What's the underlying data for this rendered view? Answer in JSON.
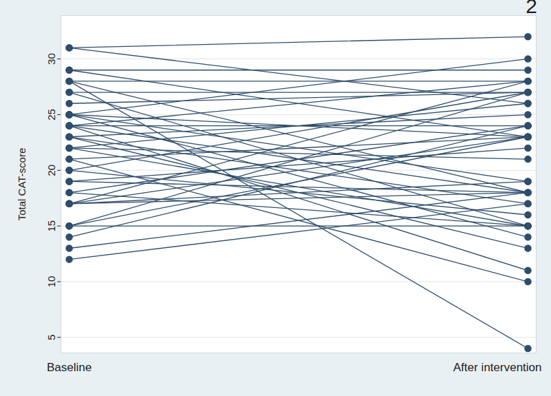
{
  "chart_data": {
    "type": "line",
    "annotations": [
      "2"
    ],
    "y_label": "Total CAT-score",
    "categories": [
      "Baseline",
      "After intervention"
    ],
    "values": [
      [
        31,
        32
      ],
      [
        31,
        26
      ],
      [
        29,
        29
      ],
      [
        29,
        23
      ],
      [
        28,
        4
      ],
      [
        28,
        28
      ],
      [
        28,
        18
      ],
      [
        27,
        27
      ],
      [
        27,
        15
      ],
      [
        26,
        27
      ],
      [
        25,
        30
      ],
      [
        25,
        23
      ],
      [
        25,
        19
      ],
      [
        25,
        14
      ],
      [
        24,
        28
      ],
      [
        24,
        24
      ],
      [
        24,
        18
      ],
      [
        24,
        11
      ],
      [
        23,
        25
      ],
      [
        23,
        17
      ],
      [
        23,
        13
      ],
      [
        22,
        26
      ],
      [
        22,
        21
      ],
      [
        22,
        15
      ],
      [
        21,
        23
      ],
      [
        21,
        10
      ],
      [
        20,
        27
      ],
      [
        20,
        16
      ],
      [
        19,
        22
      ],
      [
        19,
        18
      ],
      [
        18,
        24
      ],
      [
        18,
        15
      ],
      [
        17,
        28
      ],
      [
        17,
        23
      ],
      [
        17,
        19
      ],
      [
        17,
        18
      ],
      [
        15,
        27
      ],
      [
        15,
        23
      ],
      [
        15,
        15
      ],
      [
        14,
        24
      ],
      [
        13,
        18
      ],
      [
        12,
        17
      ]
    ],
    "color": "#2e4d6b",
    "marker": "circle",
    "ylim": [
      3.6,
      33.9
    ],
    "yticks": [
      5,
      10,
      15,
      20,
      25,
      30
    ],
    "grid": true
  }
}
